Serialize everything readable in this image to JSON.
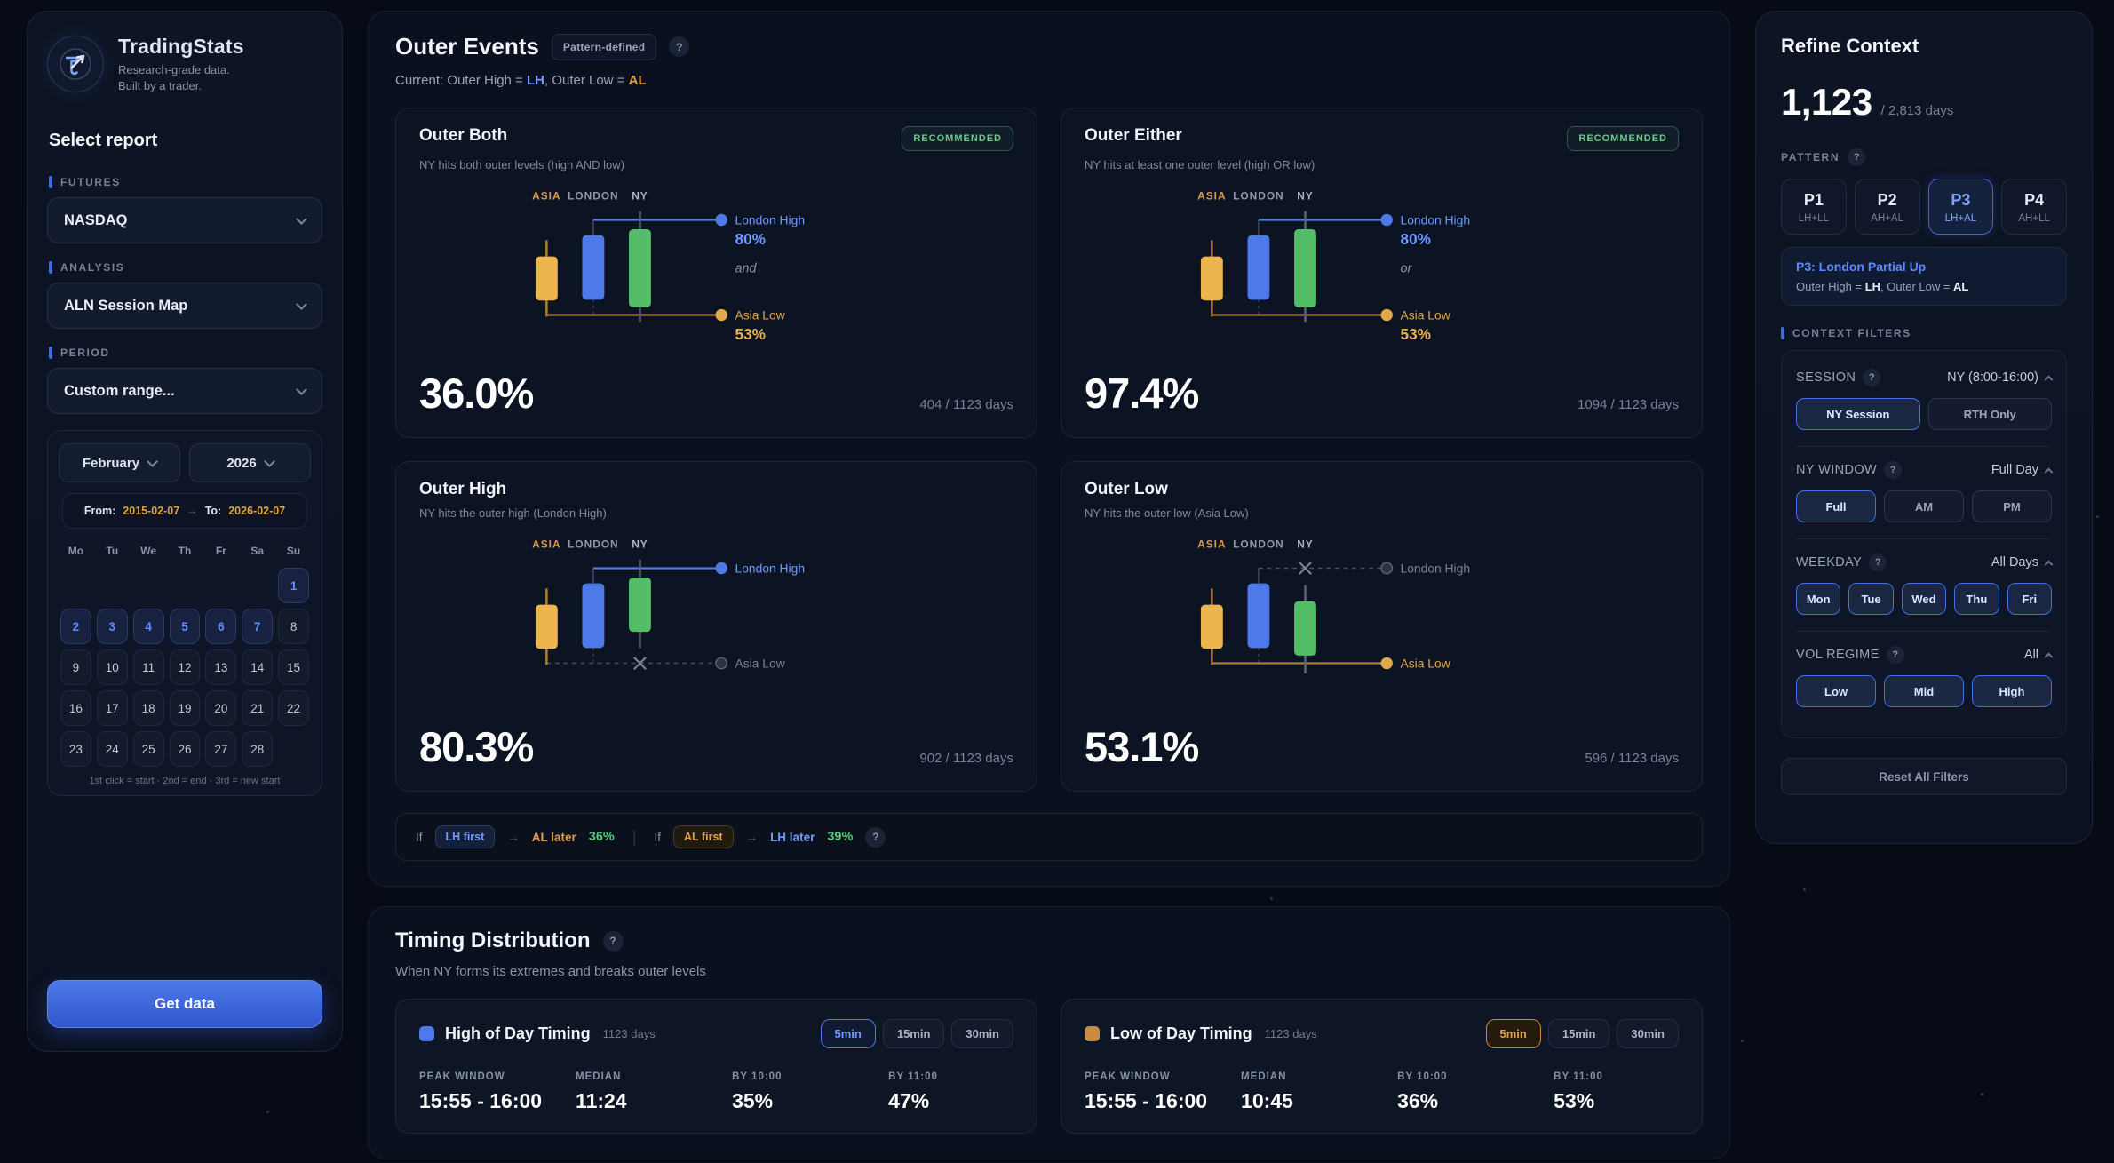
{
  "colors": {
    "accent_blue": "#4d7ae8",
    "amber": "#ecb64f",
    "amber_dark": "#b07c35",
    "green": "#53bd68",
    "blue_text": "#6f9aff",
    "amber_text": "#e0a049",
    "green_text": "#57c977",
    "gray_line": "#5a6478"
  },
  "brand": {
    "title": "TradingStats",
    "tagline1": "Research-grade data.",
    "tagline2": "Built by a trader."
  },
  "sidebar": {
    "heading": "Select report",
    "futures_label": "FUTURES",
    "futures_value": "NASDAQ",
    "analysis_label": "ANALYSIS",
    "analysis_value": "ALN Session Map",
    "period_label": "PERIOD",
    "period_value": "Custom range...",
    "calendar": {
      "month": "February",
      "year": "2026",
      "from_label": "From:",
      "from": "2015-02-07",
      "arrow": "→",
      "to_label": "To:",
      "to": "2026-02-07",
      "weekdays": [
        "Mo",
        "Tu",
        "We",
        "Th",
        "Fr",
        "Sa",
        "Su"
      ],
      "lead_blanks": 6,
      "days": [
        {
          "n": "1",
          "sel": true
        },
        {
          "n": "2",
          "sel": true
        },
        {
          "n": "3",
          "sel": true
        },
        {
          "n": "4",
          "sel": true
        },
        {
          "n": "5",
          "sel": true
        },
        {
          "n": "6",
          "sel": true
        },
        {
          "n": "7",
          "sel": true
        },
        {
          "n": "8",
          "sel": false
        },
        {
          "n": "9",
          "sel": false
        },
        {
          "n": "10",
          "sel": false
        },
        {
          "n": "11",
          "sel": false
        },
        {
          "n": "12",
          "sel": false
        },
        {
          "n": "13",
          "sel": false
        },
        {
          "n": "14",
          "sel": false
        },
        {
          "n": "15",
          "sel": false
        },
        {
          "n": "16",
          "sel": false
        },
        {
          "n": "17",
          "sel": false
        },
        {
          "n": "18",
          "sel": false
        },
        {
          "n": "19",
          "sel": false
        },
        {
          "n": "20",
          "sel": false
        },
        {
          "n": "21",
          "sel": false
        },
        {
          "n": "22",
          "sel": false
        },
        {
          "n": "23",
          "sel": false
        },
        {
          "n": "24",
          "sel": false
        },
        {
          "n": "25",
          "sel": false
        },
        {
          "n": "26",
          "sel": false
        },
        {
          "n": "27",
          "sel": false
        },
        {
          "n": "28",
          "sel": false
        }
      ],
      "hint": "1st click = start · 2nd = end · 3rd = new start"
    },
    "get_data": "Get data"
  },
  "main": {
    "header": {
      "title": "Outer Events",
      "badge": "Pattern-defined",
      "help": "?"
    },
    "current": {
      "prefix": "Current: Outer High = ",
      "lh": "LH",
      "mid": ", Outer Low = ",
      "al": "AL"
    },
    "chart": {
      "columns": [
        "ASIA",
        "LONDON",
        "NY"
      ],
      "london_high_label": "London High",
      "london_high_pct": "80%",
      "asia_low_label": "Asia Low",
      "asia_low_pct": "53%"
    },
    "cards": [
      {
        "title": "Outer Both",
        "badge": "RECOMMENDED",
        "desc": "NY hits both outer levels (high AND low)",
        "variant": "both",
        "middle": "and",
        "lh_active": true,
        "al_active": true,
        "show_pcts": true,
        "pct": "36.0%",
        "days": "404 / 1123 days"
      },
      {
        "title": "Outer Either",
        "badge": "RECOMMENDED",
        "desc": "NY hits at least one outer level (high OR low)",
        "variant": "both",
        "middle": "or",
        "lh_active": true,
        "al_active": true,
        "show_pcts": true,
        "pct": "97.4%",
        "days": "1094 / 1123 days"
      },
      {
        "title": "Outer High",
        "badge": null,
        "desc": "NY hits the outer high (London High)",
        "variant": "high",
        "middle": null,
        "lh_active": true,
        "al_active": false,
        "show_pcts": false,
        "pct": "80.3%",
        "days": "902 / 1123 days"
      },
      {
        "title": "Outer Low",
        "badge": null,
        "desc": "NY hits the outer low (Asia Low)",
        "variant": "low",
        "middle": null,
        "lh_active": false,
        "al_active": true,
        "show_pcts": false,
        "pct": "53.1%",
        "days": "596 / 1123 days"
      }
    ],
    "conditionals": {
      "items": [
        {
          "prefix": "If",
          "chip": "LH first",
          "chip_color": "blue",
          "arrow": "→",
          "rest": "AL later",
          "rest_color": "amber",
          "pct": "36%"
        },
        {
          "prefix": "If",
          "chip": "AL first",
          "chip_color": "amber",
          "arrow": "→",
          "rest": "LH later",
          "rest_color": "blue",
          "pct": "39%"
        }
      ],
      "help": "?"
    },
    "timing": {
      "title": "Timing Distribution",
      "help": "?",
      "subtitle": "When NY forms its extremes and breaks outer levels",
      "cards": [
        {
          "accent": "blue",
          "icon_color": "#4d7ae8",
          "title": "High of Day Timing",
          "days": "1123 days",
          "buttons": [
            "5min",
            "15min",
            "30min"
          ],
          "active_button": 0,
          "stats": [
            {
              "label": "PEAK WINDOW",
              "value": "15:55 - 16:00"
            },
            {
              "label": "MEDIAN",
              "value": "11:24"
            },
            {
              "label": "BY 10:00",
              "value": "35%"
            },
            {
              "label": "BY 11:00",
              "value": "47%"
            }
          ]
        },
        {
          "accent": "amber",
          "icon_color": "#c98b3f",
          "title": "Low of Day Timing",
          "days": "1123 days",
          "buttons": [
            "5min",
            "15min",
            "30min"
          ],
          "active_button": 0,
          "stats": [
            {
              "label": "PEAK WINDOW",
              "value": "15:55 - 16:00"
            },
            {
              "label": "MEDIAN",
              "value": "10:45"
            },
            {
              "label": "BY 10:00",
              "value": "36%"
            },
            {
              "label": "BY 11:00",
              "value": "53%"
            }
          ]
        }
      ]
    }
  },
  "refine": {
    "title": "Refine Context",
    "count": "1,123",
    "total": "/ 2,813 days",
    "pattern_label": "PATTERN",
    "pattern_help": "?",
    "patterns": [
      {
        "id": "P1",
        "sub": "LH+LL",
        "active": false
      },
      {
        "id": "P2",
        "sub": "AH+AL",
        "active": false
      },
      {
        "id": "P3",
        "sub": "LH+AL",
        "active": true
      },
      {
        "id": "P4",
        "sub": "AH+LL",
        "active": false
      }
    ],
    "pattern_info": {
      "title": "P3: London Partial Up",
      "d1": "Outer High = ",
      "b1": "LH",
      "d2": ", Outer Low = ",
      "b2": "AL"
    },
    "context_filters_label": "CONTEXT FILTERS",
    "filters": [
      {
        "name": "SESSION",
        "help": "?",
        "value": "NY (8:00-16:00)",
        "cols": 2,
        "options": [
          {
            "label": "NY Session",
            "active": true
          },
          {
            "label": "RTH Only",
            "active": false
          }
        ]
      },
      {
        "name": "NY WINDOW",
        "help": "?",
        "value": "Full Day",
        "cols": 3,
        "options": [
          {
            "label": "Full",
            "active": true
          },
          {
            "label": "AM",
            "active": false
          },
          {
            "label": "PM",
            "active": false
          }
        ]
      },
      {
        "name": "WEEKDAY",
        "help": "?",
        "value": "All Days",
        "cols": 5,
        "options": [
          {
            "label": "Mon",
            "active": true
          },
          {
            "label": "Tue",
            "active": true
          },
          {
            "label": "Wed",
            "active": true
          },
          {
            "label": "Thu",
            "active": true
          },
          {
            "label": "Fri",
            "active": true
          }
        ]
      },
      {
        "name": "VOL REGIME",
        "help": "?",
        "value": "All",
        "cols": 3,
        "options": [
          {
            "label": "Low",
            "active": true
          },
          {
            "label": "Mid",
            "active": true
          },
          {
            "label": "High",
            "active": true
          }
        ]
      }
    ],
    "reset": "Reset All Filters"
  }
}
